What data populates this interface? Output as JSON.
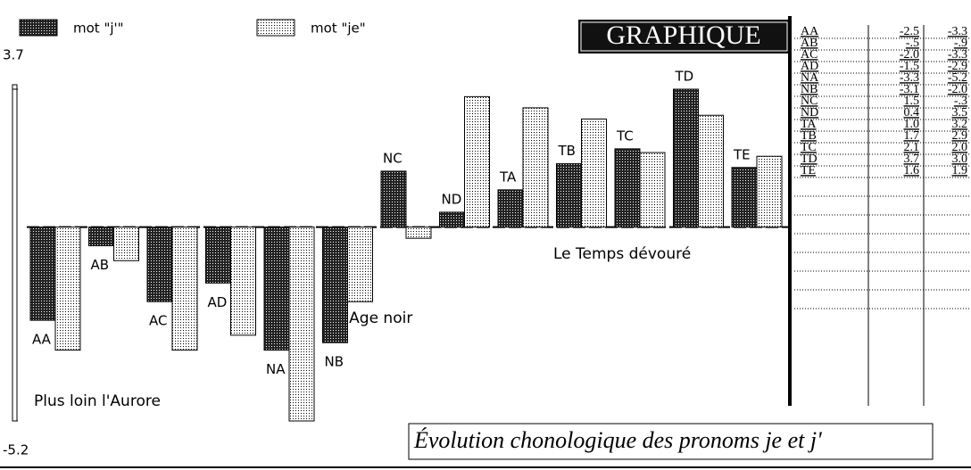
{
  "chart_data": {
    "type": "bar",
    "title": "GRAPHIQUE",
    "caption": "Évolution chonologique des pronoms je et j'",
    "annotations": [
      "Plus loin l'Aurore",
      "L'Age noir",
      "Le Temps dévouré"
    ],
    "categories": [
      "AA",
      "AB",
      "AC",
      "AD",
      "NA",
      "NB",
      "NC",
      "ND",
      "TA",
      "TB",
      "TC",
      "TD",
      "TE"
    ],
    "series": [
      {
        "name": "mot \"j'\"",
        "color": "#444444",
        "values": [
          -2.5,
          -0.5,
          -2.0,
          -1.5,
          -3.3,
          -3.1,
          1.5,
          0.4,
          1.0,
          1.7,
          2.1,
          3.7,
          1.6
        ],
        "value_labels": [
          "-2.5",
          "-.5",
          "-2.0",
          "-1.5",
          "-3.3",
          "-3.1",
          "1.5",
          "0.4",
          "1.0",
          "1.7",
          "2.1",
          "3.7",
          "1.6"
        ]
      },
      {
        "name": "mot \"je\"",
        "color": "#dddddd",
        "values": [
          -3.3,
          -0.9,
          -3.3,
          -2.9,
          -5.2,
          -2.0,
          -0.3,
          3.5,
          3.2,
          2.9,
          2.0,
          3.0,
          1.9
        ],
        "value_labels": [
          "-3.3",
          "-.9",
          "-3.3",
          "-2.9",
          "-5.2",
          "-2.0",
          "-.3",
          "3.5",
          "3.2",
          "2.9",
          "2.0",
          "3.0",
          "1.9"
        ]
      }
    ],
    "ylim": [
      -5.2,
      3.7
    ],
    "yticks": [
      3.7,
      -5.2
    ]
  }
}
